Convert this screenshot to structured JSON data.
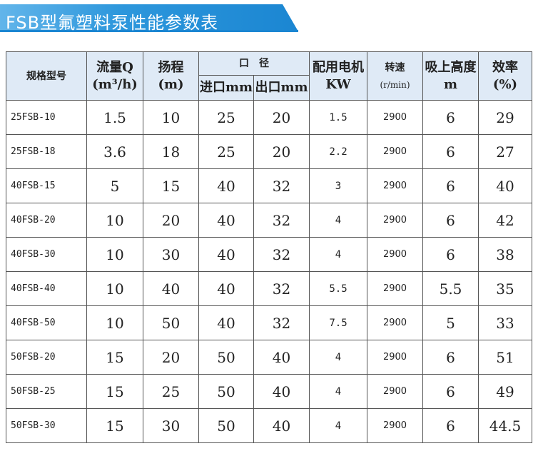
{
  "header": {
    "title": "FSB型氟塑料泵性能参数表"
  },
  "table": {
    "headers": {
      "model": "规格型号",
      "flow": [
        "流量Q",
        "(m³/h)"
      ],
      "head": [
        "扬程",
        "(m)"
      ],
      "caliber": "口　径",
      "inlet": "进口mm",
      "outlet": "出口mm",
      "motor": [
        "配用电机",
        "KW"
      ],
      "speed": [
        "转速",
        "(r/min)"
      ],
      "suction": [
        "吸上高度",
        "m"
      ],
      "efficiency": [
        "效率",
        "(%)"
      ]
    },
    "rows": [
      [
        "25FSB-10",
        "1.5",
        "10",
        "25",
        "20",
        "1.5",
        "2900",
        "6",
        "29"
      ],
      [
        "25FSB-18",
        "3.6",
        "18",
        "25",
        "20",
        "2.2",
        "2900",
        "6",
        "27"
      ],
      [
        "40FSB-15",
        "5",
        "15",
        "40",
        "32",
        "3",
        "2900",
        "6",
        "40"
      ],
      [
        "40FSB-20",
        "10",
        "20",
        "40",
        "32",
        "4",
        "2900",
        "6",
        "42"
      ],
      [
        "40FSB-30",
        "10",
        "30",
        "40",
        "32",
        "4",
        "2900",
        "6",
        "38"
      ],
      [
        "40FSB-40",
        "10",
        "40",
        "40",
        "32",
        "5.5",
        "2900",
        "5.5",
        "35"
      ],
      [
        "40FSB-50",
        "10",
        "50",
        "40",
        "32",
        "7.5",
        "2900",
        "5",
        "33"
      ],
      [
        "50FSB-20",
        "15",
        "20",
        "50",
        "40",
        "4",
        "2900",
        "6",
        "51"
      ],
      [
        "50FSB-25",
        "15",
        "25",
        "50",
        "40",
        "4",
        "2900",
        "6",
        "49"
      ],
      [
        "50FSB-30",
        "15",
        "30",
        "50",
        "40",
        "4",
        "2900",
        "6",
        "44.5"
      ]
    ]
  }
}
